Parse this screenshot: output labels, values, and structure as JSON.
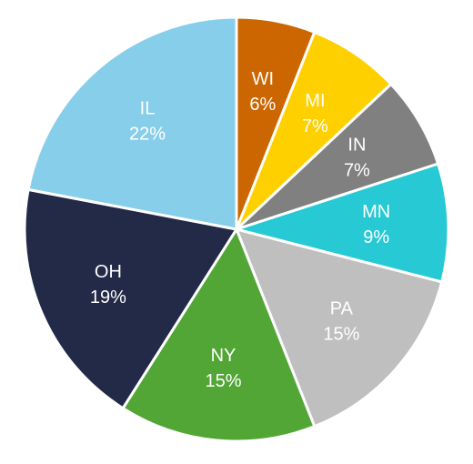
{
  "chart_data": {
    "type": "pie",
    "title": "",
    "legend": "none",
    "slices": [
      {
        "label": "WI",
        "value": 6,
        "value_label": "6%",
        "color": "#CC6600",
        "text_color": "#FFFFFF"
      },
      {
        "label": "MI",
        "value": 7,
        "value_label": "7%",
        "color": "#FFD000",
        "text_color": "#FFFFFF"
      },
      {
        "label": "IN",
        "value": 7,
        "value_label": "7%",
        "color": "#808080",
        "text_color": "#FFFFFF"
      },
      {
        "label": "MN",
        "value": 9,
        "value_label": "9%",
        "color": "#26C9D4",
        "text_color": "#FFFFFF"
      },
      {
        "label": "PA",
        "value": 15,
        "value_label": "15%",
        "color": "#BFBFBF",
        "text_color": "#FFFFFF"
      },
      {
        "label": "NY",
        "value": 15,
        "value_label": "15%",
        "color": "#52A635",
        "text_color": "#FFFFFF"
      },
      {
        "label": "OH",
        "value": 19,
        "value_label": "19%",
        "color": "#222A48",
        "text_color": "#FFFFFF"
      },
      {
        "label": "IL",
        "value": 22,
        "value_label": "22%",
        "color": "#87CEEB",
        "text_color": "#FFFFFF"
      }
    ]
  }
}
